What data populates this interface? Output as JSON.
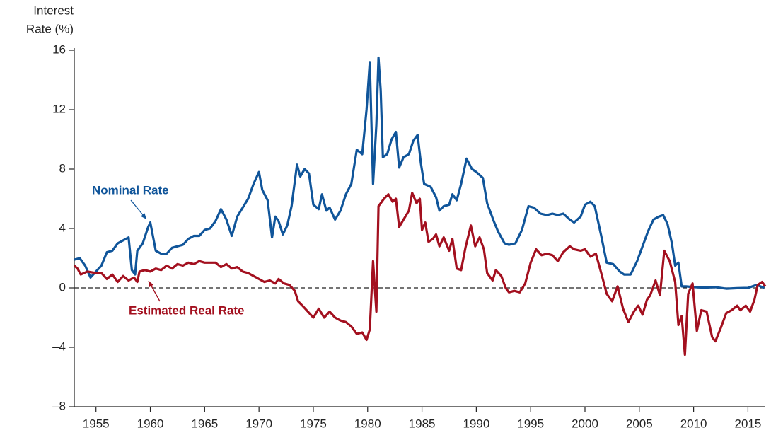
{
  "chart_data": {
    "type": "line",
    "y_label": [
      "Interest",
      "Rate (%)"
    ],
    "xlim": [
      1953,
      2016.6
    ],
    "xticks": [
      1955,
      1960,
      1965,
      1970,
      1975,
      1980,
      1985,
      1990,
      1995,
      2000,
      2005,
      2010,
      2015
    ],
    "ylim": [
      -8,
      16
    ],
    "yticks": [
      {
        "value": -8,
        "label": "–8"
      },
      {
        "value": -4,
        "label": "–4"
      },
      0,
      4,
      8,
      12,
      16
    ],
    "zero_line": "dashed",
    "series": [
      {
        "name": "Nominal Rate",
        "color": "#10559a",
        "x": [
          1953.0,
          1953.5,
          1954.0,
          1954.5,
          1955.0,
          1955.5,
          1956.0,
          1956.5,
          1957.0,
          1957.5,
          1958.0,
          1958.3,
          1958.6,
          1958.8,
          1959.3,
          1959.8,
          1960.0,
          1960.5,
          1961.0,
          1961.5,
          1962.0,
          1962.5,
          1963.0,
          1963.5,
          1964.0,
          1964.5,
          1965.0,
          1965.5,
          1966.0,
          1966.5,
          1967.0,
          1967.5,
          1968.0,
          1968.5,
          1969.0,
          1969.5,
          1970.0,
          1970.3,
          1970.8,
          1971.2,
          1971.5,
          1971.8,
          1972.2,
          1972.6,
          1973.0,
          1973.5,
          1973.8,
          1974.2,
          1974.6,
          1975.0,
          1975.5,
          1975.8,
          1976.2,
          1976.5,
          1977.0,
          1977.5,
          1978.0,
          1978.5,
          1979.0,
          1979.5,
          1979.9,
          1980.2,
          1980.5,
          1980.8,
          1981.0,
          1981.2,
          1981.4,
          1981.8,
          1982.2,
          1982.6,
          1982.9,
          1983.3,
          1983.8,
          1984.2,
          1984.6,
          1984.9,
          1985.2,
          1985.8,
          1986.3,
          1986.6,
          1987.0,
          1987.5,
          1987.8,
          1988.2,
          1988.6,
          1989.1,
          1989.6,
          1990.0,
          1990.6,
          1991.0,
          1991.6,
          1992.0,
          1992.6,
          1993.0,
          1993.6,
          1994.2,
          1994.8,
          1995.3,
          1995.9,
          1996.5,
          1997.0,
          1997.5,
          1998.0,
          1998.6,
          1999.0,
          1999.6,
          2000.0,
          2000.5,
          2000.9,
          2001.5,
          2002.0,
          2002.6,
          2003.2,
          2003.6,
          2004.2,
          2004.8,
          2005.3,
          2005.8,
          2006.3,
          2006.8,
          2007.2,
          2007.6,
          2008.0,
          2008.3,
          2008.6,
          2008.9,
          2009.3,
          2010.0,
          2011.0,
          2012.0,
          2013.0,
          2014.0,
          2015.0,
          2015.8,
          2016.5
        ],
        "values": [
          1.9,
          2.0,
          1.5,
          0.7,
          1.1,
          1.5,
          2.4,
          2.5,
          3.0,
          3.2,
          3.4,
          1.2,
          0.9,
          2.5,
          3.0,
          4.1,
          4.4,
          2.5,
          2.3,
          2.3,
          2.7,
          2.8,
          2.9,
          3.3,
          3.5,
          3.5,
          3.9,
          4.0,
          4.5,
          5.3,
          4.6,
          3.5,
          4.8,
          5.4,
          6.0,
          7.0,
          7.8,
          6.6,
          5.9,
          3.4,
          4.8,
          4.5,
          3.6,
          4.2,
          5.5,
          8.3,
          7.5,
          8.0,
          7.7,
          5.6,
          5.3,
          6.3,
          5.2,
          5.4,
          4.6,
          5.2,
          6.3,
          7.0,
          9.3,
          9.0,
          12.0,
          15.2,
          7.0,
          11.0,
          15.5,
          13.3,
          8.8,
          9.0,
          10.0,
          10.5,
          8.1,
          8.8,
          9.0,
          9.9,
          10.3,
          8.4,
          7.0,
          6.8,
          6.1,
          5.2,
          5.5,
          5.6,
          6.3,
          5.9,
          7.0,
          8.7,
          8.0,
          7.8,
          7.4,
          5.7,
          4.5,
          3.8,
          3.0,
          2.9,
          3.0,
          3.9,
          5.5,
          5.4,
          5.0,
          4.9,
          5.0,
          4.9,
          5.0,
          4.6,
          4.4,
          4.8,
          5.6,
          5.8,
          5.5,
          3.5,
          1.7,
          1.6,
          1.1,
          0.9,
          0.9,
          1.8,
          2.8,
          3.8,
          4.6,
          4.8,
          4.9,
          4.3,
          3.0,
          1.5,
          1.7,
          0.1,
          0.1,
          0.05,
          0.02,
          0.05,
          -0.05,
          -0.02,
          0.0,
          0.2,
          0.0
        ]
      },
      {
        "name": "Estimated Real Rate",
        "color": "#a3101f",
        "x": [
          1953.0,
          1953.3,
          1953.6,
          1954.2,
          1955.0,
          1955.5,
          1956.0,
          1956.5,
          1957.0,
          1957.5,
          1958.0,
          1958.5,
          1958.8,
          1959.0,
          1959.5,
          1960.0,
          1960.5,
          1961.0,
          1961.5,
          1962.0,
          1962.5,
          1963.0,
          1963.5,
          1964.0,
          1964.5,
          1965.0,
          1966.0,
          1966.5,
          1967.0,
          1967.5,
          1968.0,
          1968.5,
          1969.0,
          1969.5,
          1970.0,
          1970.5,
          1971.0,
          1971.5,
          1971.8,
          1972.3,
          1972.8,
          1973.3,
          1973.6,
          1974.0,
          1974.5,
          1975.0,
          1975.5,
          1976.0,
          1976.5,
          1977.0,
          1977.5,
          1978.0,
          1978.5,
          1979.0,
          1979.5,
          1979.9,
          1980.2,
          1980.5,
          1980.8,
          1981.0,
          1981.5,
          1981.9,
          1982.3,
          1982.6,
          1982.9,
          1983.3,
          1983.8,
          1984.1,
          1984.5,
          1984.8,
          1985.0,
          1985.3,
          1985.6,
          1986.0,
          1986.3,
          1986.6,
          1987.0,
          1987.5,
          1987.8,
          1988.2,
          1988.6,
          1989.0,
          1989.5,
          1989.9,
          1990.3,
          1990.7,
          1991.0,
          1991.5,
          1991.8,
          1992.3,
          1992.7,
          1993.0,
          1993.5,
          1994.0,
          1994.5,
          1995.0,
          1995.5,
          1996.0,
          1996.5,
          1997.0,
          1997.5,
          1998.0,
          1998.6,
          1999.0,
          1999.6,
          2000.0,
          2000.5,
          2001.0,
          2001.5,
          2002.0,
          2002.5,
          2003.0,
          2003.5,
          2004.0,
          2004.5,
          2004.9,
          2005.3,
          2005.7,
          2006.0,
          2006.5,
          2006.9,
          2007.3,
          2007.8,
          2008.3,
          2008.6,
          2008.9,
          2009.2,
          2009.5,
          2009.9,
          2010.3,
          2010.7,
          2011.2,
          2011.7,
          2012.0,
          2012.5,
          2013.0,
          2013.5,
          2014.0,
          2014.3,
          2014.8,
          2015.2,
          2015.6,
          2015.9,
          2016.3,
          2016.6
        ],
        "values": [
          1.5,
          1.3,
          0.9,
          1.1,
          1.0,
          1.0,
          0.6,
          0.9,
          0.4,
          0.8,
          0.5,
          0.7,
          0.4,
          1.1,
          1.2,
          1.1,
          1.3,
          1.2,
          1.5,
          1.3,
          1.6,
          1.5,
          1.7,
          1.6,
          1.8,
          1.7,
          1.7,
          1.4,
          1.6,
          1.3,
          1.4,
          1.1,
          1.0,
          0.8,
          0.6,
          0.4,
          0.5,
          0.3,
          0.6,
          0.3,
          0.2,
          -0.2,
          -0.9,
          -1.2,
          -1.6,
          -2.0,
          -1.4,
          -2.0,
          -1.6,
          -2.0,
          -2.2,
          -2.3,
          -2.6,
          -3.1,
          -3.0,
          -3.5,
          -2.8,
          1.8,
          -1.6,
          5.5,
          6.0,
          6.3,
          5.8,
          6.0,
          4.1,
          4.6,
          5.2,
          6.4,
          5.7,
          6.0,
          3.9,
          4.4,
          3.1,
          3.3,
          3.6,
          2.8,
          3.4,
          2.5,
          3.3,
          1.3,
          1.2,
          2.7,
          4.2,
          2.8,
          3.4,
          2.6,
          1.0,
          0.5,
          1.2,
          0.8,
          0.0,
          -0.3,
          -0.2,
          -0.3,
          0.3,
          1.7,
          2.6,
          2.2,
          2.3,
          2.2,
          1.8,
          2.4,
          2.8,
          2.6,
          2.5,
          2.6,
          2.1,
          2.3,
          1.0,
          -0.4,
          -0.9,
          0.1,
          -1.4,
          -2.3,
          -1.6,
          -1.2,
          -1.8,
          -0.8,
          -0.5,
          0.5,
          -0.5,
          2.5,
          1.8,
          0.4,
          -2.5,
          -1.9,
          -4.5,
          -0.4,
          0.3,
          -2.9,
          -1.5,
          -1.6,
          -3.3,
          -3.6,
          -2.7,
          -1.7,
          -1.5,
          -1.2,
          -1.5,
          -1.2,
          -1.6,
          -0.8,
          0.2,
          0.4,
          0.1
        ]
      }
    ]
  }
}
